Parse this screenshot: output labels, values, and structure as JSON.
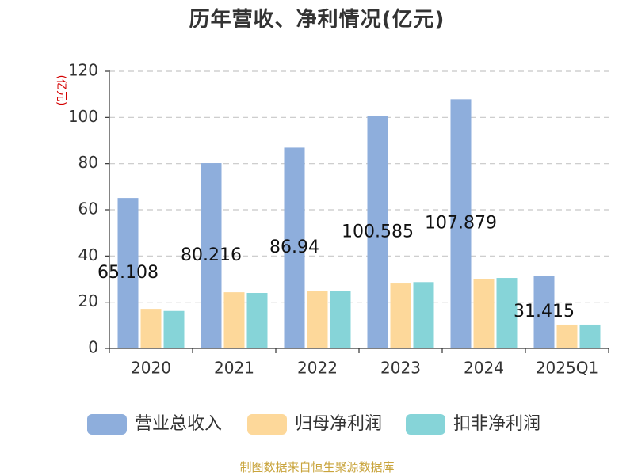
{
  "title": "历年营收、净利情况(亿元)",
  "footer": "制图数据来自恒生聚源数据库",
  "chart_data": {
    "type": "bar",
    "title": "历年营收、净利情况(亿元)",
    "ylabel": "(亿元)",
    "xlabel": "",
    "categories": [
      "2020",
      "2021",
      "2022",
      "2023",
      "2024",
      "2025Q1"
    ],
    "ylim": [
      0,
      120
    ],
    "yticks": [
      0,
      20,
      40,
      60,
      80,
      100,
      120
    ],
    "grid": true,
    "legend": "bottom",
    "series": [
      {
        "name": "营业总收入",
        "color": "#8eaedc",
        "values": [
          65.108,
          80.216,
          86.94,
          100.585,
          107.879,
          31.415
        ],
        "show_labels": true
      },
      {
        "name": "归母净利润",
        "color": "#fdd89a",
        "values": [
          17.1,
          24.3,
          25.0,
          28.1,
          30.1,
          10.3
        ],
        "show_labels": false
      },
      {
        "name": "扣非净利润",
        "color": "#86d4d8",
        "values": [
          16.2,
          24.0,
          25.0,
          28.7,
          30.5,
          10.3
        ],
        "show_labels": false
      }
    ]
  }
}
